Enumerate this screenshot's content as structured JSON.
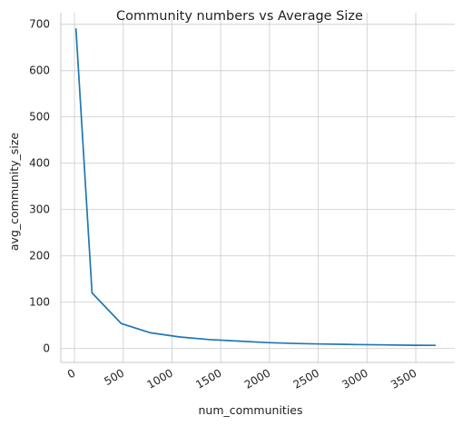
{
  "chart_data": {
    "type": "line",
    "title": "Community numbers vs Average Size",
    "xlabel": "num_communities",
    "ylabel": "avg_community_size",
    "xlim": [
      -140,
      3900
    ],
    "ylim": [
      -30,
      725
    ],
    "xticks": [
      0,
      500,
      1000,
      1500,
      2000,
      2500,
      3000,
      3500
    ],
    "yticks": [
      0,
      100,
      200,
      300,
      400,
      500,
      600,
      700
    ],
    "xtick_rotation": 30,
    "grid": true,
    "series": [
      {
        "color": "#1f77b4",
        "x": [
          15,
          180,
          480,
          780,
          1080,
          1380,
          1680,
          1980,
          2280,
          2580,
          2880,
          3180,
          3480,
          3700
        ],
        "y": [
          690,
          120,
          54,
          34,
          25,
          19.5,
          16,
          12.8,
          10.8,
          9.6,
          8.6,
          7.8,
          7.0,
          6.8
        ]
      }
    ]
  }
}
